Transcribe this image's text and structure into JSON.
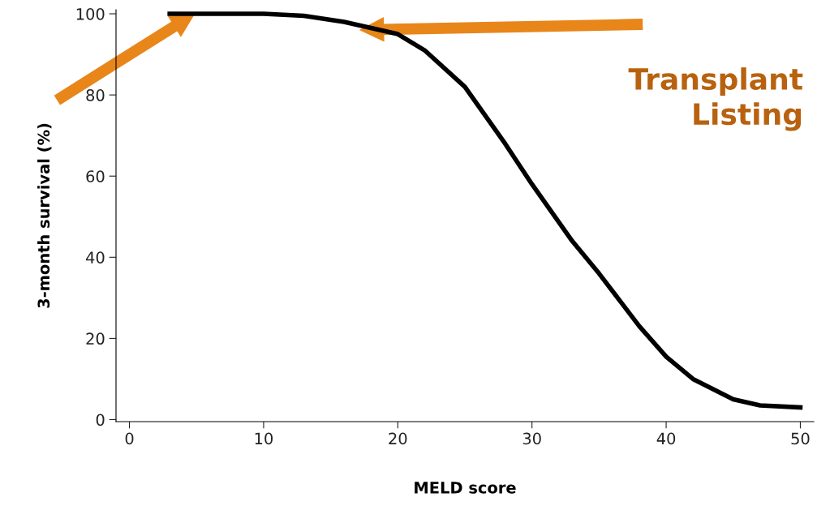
{
  "chart_data": {
    "type": "line",
    "xlabel": "MELD score",
    "ylabel": "3-month survival (%)",
    "x": [
      3,
      6,
      10,
      13,
      16,
      18,
      20,
      22,
      25,
      28,
      30,
      33,
      35,
      38,
      40,
      42,
      45,
      47,
      50
    ],
    "series": [
      {
        "color": "#000000",
        "values": [
          100,
          100,
          100,
          99.5,
          98,
          96.5,
          95,
          91,
          82,
          68,
          58,
          44,
          36,
          23,
          15.5,
          10,
          5,
          3.5,
          3
        ]
      }
    ],
    "xlim": [
      -1,
      51
    ],
    "xticks": [
      0,
      10,
      20,
      30,
      40,
      50
    ],
    "ylim": [
      -0.5,
      101
    ],
    "yticks": [
      0,
      20,
      40,
      60,
      80,
      100
    ],
    "grid": false,
    "legend": false,
    "marker": "none",
    "line_style": "solid",
    "annotations": [
      "Transplant\nListing"
    ]
  }
}
